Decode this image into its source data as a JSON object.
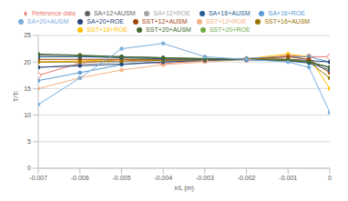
{
  "chart_data": {
    "type": "line",
    "x_label": "x/L (m)",
    "y_label": "T/Ti",
    "x": [
      -0.007,
      -0.006,
      -0.005,
      -0.004,
      -0.003,
      -0.002,
      -0.001,
      -0.0005,
      0
    ],
    "xlim": [
      -0.007,
      0
    ],
    "xticks": [
      -0.007,
      -0.006,
      -0.005,
      -0.004,
      -0.003,
      -0.002,
      -0.001,
      0
    ],
    "ylim": [
      0,
      25
    ],
    "yticks": [
      0,
      5,
      10,
      15,
      20,
      25
    ],
    "grid": true,
    "legend": "top",
    "series": [
      {
        "name": "Reference data",
        "color": "#e8776b",
        "marker": "diamond",
        "values": [
          17.5,
          19.8,
          20.5,
          19.7,
          20.3,
          20.5,
          21.2,
          21,
          21
        ]
      },
      {
        "name": "SST+12+ROE",
        "color": "#f4b183",
        "marker": "circle",
        "values": [
          15,
          17,
          18.5,
          19.5,
          20,
          20.5,
          21,
          20.5,
          18
        ]
      },
      {
        "name": "SA+12+ROE",
        "color": "#a5a5a5",
        "marker": "circle",
        "values": [
          19,
          19.5,
          20,
          20.3,
          20.5,
          20.5,
          20.5,
          20,
          19
        ]
      },
      {
        "name": "SST+16+ROE",
        "color": "#ffc000",
        "marker": "circle",
        "values": [
          20,
          20.2,
          20.5,
          20.5,
          20.5,
          20.6,
          21.5,
          21,
          15
        ]
      },
      {
        "name": "SA+16+ROE",
        "color": "#5b9bd5",
        "marker": "circle",
        "values": [
          16.5,
          18,
          19.5,
          20,
          20.5,
          20.7,
          21,
          21,
          20
        ]
      },
      {
        "name": "SST+20+ROE",
        "color": "#70ad47",
        "marker": "circle",
        "values": [
          21,
          21,
          21,
          20.8,
          20.7,
          20.6,
          20.5,
          20,
          19
        ]
      },
      {
        "name": "SA+20+ROE",
        "color": "#264478",
        "marker": "circle",
        "values": [
          19,
          19.3,
          19.6,
          20,
          20.3,
          20.5,
          20.5,
          20.3,
          20
        ]
      },
      {
        "name": "SST+12+AUSM",
        "color": "#9e480e",
        "marker": "circle",
        "values": [
          20.5,
          20.5,
          20.5,
          20.5,
          20.5,
          20.5,
          21,
          20.5,
          18
        ]
      },
      {
        "name": "SA+12+AUSM",
        "color": "#636363",
        "marker": "circle",
        "values": [
          21.3,
          21.2,
          21,
          20.8,
          20.6,
          20.5,
          20.3,
          20,
          19
        ]
      },
      {
        "name": "SST+16+AUSM",
        "color": "#997300",
        "marker": "circle",
        "values": [
          20,
          20,
          20.2,
          20.3,
          20.4,
          20.5,
          20.5,
          20,
          17
        ]
      },
      {
        "name": "SA+16+AUSM",
        "color": "#255e91",
        "marker": "circle",
        "values": [
          21,
          21,
          20.8,
          20.6,
          20.5,
          20.4,
          20.2,
          19.8,
          18.5
        ]
      },
      {
        "name": "SST+20+AUSM",
        "color": "#43682b",
        "marker": "circle",
        "values": [
          21.5,
          21.3,
          21,
          20.8,
          20.6,
          20.5,
          20.3,
          20,
          19
        ]
      },
      {
        "name": "SA+20+AUSM",
        "color": "#7cafdd",
        "marker": "circle",
        "values": [
          12,
          17,
          22.5,
          23.5,
          21,
          20.5,
          20,
          19,
          10.5
        ]
      }
    ]
  }
}
